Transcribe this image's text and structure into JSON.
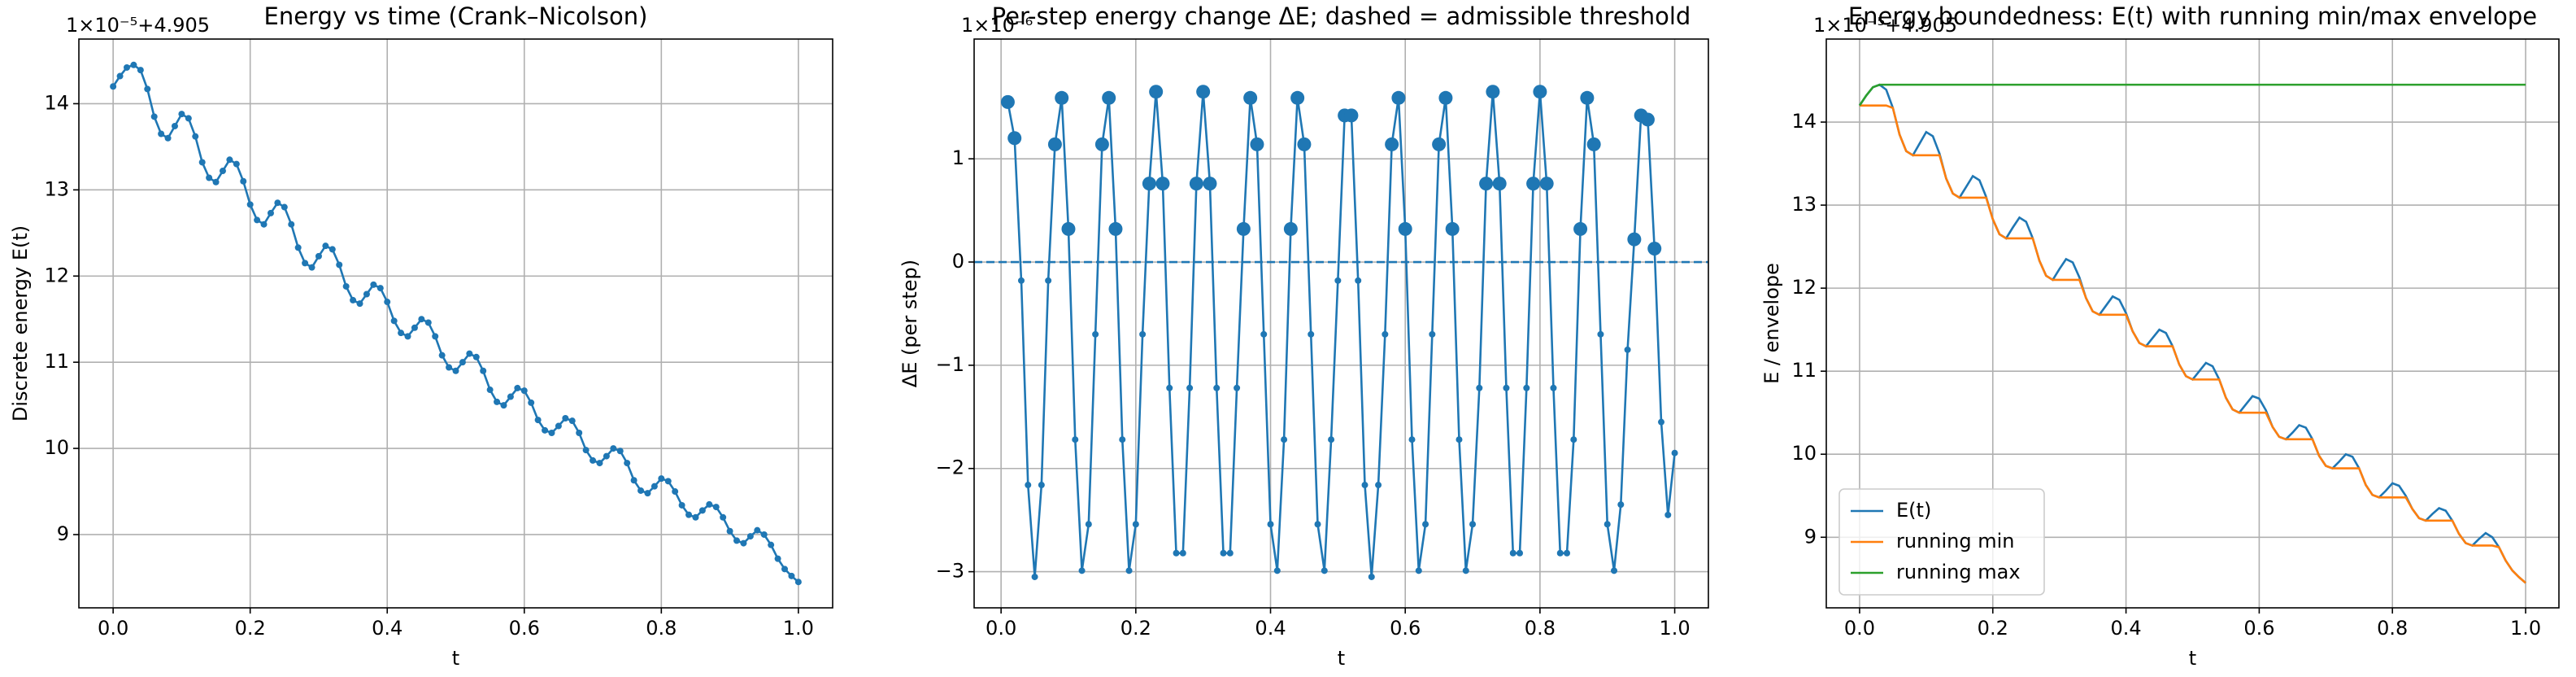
{
  "chart_data": [
    {
      "type": "line",
      "title": "Energy vs time (Crank–Nicolson)",
      "offset_label": "1×10⁻⁵+4.905",
      "xlabel": "t",
      "ylabel": "Discrete energy E(t)",
      "color": "#1f77b4",
      "markers": true,
      "grid": true,
      "x": [
        0,
        0.01,
        0.02,
        0.03,
        0.04,
        0.05,
        0.06,
        0.07,
        0.08,
        0.09,
        0.1,
        0.11,
        0.12,
        0.13,
        0.14,
        0.15,
        0.16,
        0.17,
        0.18,
        0.19,
        0.2,
        0.21,
        0.22,
        0.23,
        0.24,
        0.25,
        0.26,
        0.27,
        0.28,
        0.29,
        0.3,
        0.31,
        0.32,
        0.33,
        0.34,
        0.35,
        0.36,
        0.37,
        0.38,
        0.39,
        0.4,
        0.41,
        0.42,
        0.43,
        0.44,
        0.45,
        0.46,
        0.47,
        0.48,
        0.49,
        0.5,
        0.51,
        0.52,
        0.53,
        0.54,
        0.55,
        0.56,
        0.57,
        0.58,
        0.59,
        0.6,
        0.61,
        0.62,
        0.63,
        0.64,
        0.65,
        0.66,
        0.67,
        0.68,
        0.69,
        0.7,
        0.71,
        0.72,
        0.73,
        0.74,
        0.75,
        0.76,
        0.77,
        0.78,
        0.79,
        0.8,
        0.81,
        0.82,
        0.83,
        0.84,
        0.85,
        0.86,
        0.87,
        0.88,
        0.89,
        0.9,
        0.91,
        0.92,
        0.93,
        0.94,
        0.95,
        0.96,
        0.97,
        0.98,
        0.99,
        1
      ],
      "values": [
        14.2,
        14.32,
        14.42,
        14.45,
        14.39,
        14.17,
        13.85,
        13.65,
        13.6,
        13.74,
        13.88,
        13.83,
        13.62,
        13.32,
        13.14,
        13.09,
        13.22,
        13.35,
        13.3,
        13.1,
        12.83,
        12.65,
        12.6,
        12.73,
        12.85,
        12.8,
        12.6,
        12.33,
        12.15,
        12.1,
        12.23,
        12.35,
        12.31,
        12.13,
        11.88,
        11.72,
        11.68,
        11.79,
        11.9,
        11.86,
        11.7,
        11.48,
        11.34,
        11.3,
        11.4,
        11.5,
        11.46,
        11.3,
        11.08,
        10.94,
        10.9,
        11,
        11.1,
        11.06,
        10.9,
        10.68,
        10.54,
        10.5,
        10.6,
        10.7,
        10.67,
        10.53,
        10.33,
        10.21,
        10.18,
        10.26,
        10.35,
        10.32,
        10.18,
        9.98,
        9.86,
        9.83,
        9.91,
        10,
        9.97,
        9.83,
        9.63,
        9.51,
        9.48,
        9.56,
        9.65,
        9.62,
        9.5,
        9.34,
        9.23,
        9.2,
        9.28,
        9.35,
        9.32,
        9.2,
        9.04,
        8.93,
        8.9,
        8.98,
        9.05,
        9,
        8.88,
        8.72,
        8.6,
        8.52,
        8.45
      ],
      "xlim": [
        -0.05,
        1.05
      ],
      "ylim": [
        8.15,
        14.75
      ],
      "xticks": [
        {
          "value": 0,
          "label": "0.0"
        },
        0.2,
        0.4,
        0.6,
        0.8,
        {
          "value": 1,
          "label": "1.0"
        }
      ],
      "yticks": [
        9,
        10,
        11,
        12,
        13,
        14
      ]
    },
    {
      "type": "line",
      "title": "Per-step energy change ΔE; dashed = admissible threshold",
      "offset_label": "1×10⁻⁶",
      "xlabel": "t",
      "ylabel": "ΔE (per step)",
      "color": "#1f77b4",
      "markers": true,
      "grid": true,
      "threshold": 0,
      "threshold_color": "#1f77b4",
      "x": [
        0.01,
        0.02,
        0.03,
        0.04,
        0.05,
        0.06,
        0.07,
        0.08,
        0.09,
        0.1,
        0.11,
        0.12,
        0.13,
        0.14,
        0.15,
        0.16,
        0.17,
        0.18,
        0.19,
        0.2,
        0.21,
        0.22,
        0.23,
        0.24,
        0.25,
        0.26,
        0.27,
        0.28,
        0.29,
        0.3,
        0.31,
        0.32,
        0.33,
        0.34,
        0.35,
        0.36,
        0.37,
        0.38,
        0.39,
        0.4,
        0.41,
        0.42,
        0.43,
        0.44,
        0.45,
        0.46,
        0.47,
        0.48,
        0.49,
        0.5,
        0.51,
        0.52,
        0.53,
        0.54,
        0.55,
        0.56,
        0.57,
        0.58,
        0.59,
        0.6,
        0.61,
        0.62,
        0.63,
        0.64,
        0.65,
        0.66,
        0.67,
        0.68,
        0.69,
        0.7,
        0.71,
        0.72,
        0.73,
        0.74,
        0.75,
        0.76,
        0.77,
        0.78,
        0.79,
        0.8,
        0.81,
        0.82,
        0.83,
        0.84,
        0.85,
        0.86,
        0.87,
        0.88,
        0.89,
        0.9,
        0.91,
        0.92,
        0.93,
        0.94,
        0.95,
        0.96,
        0.97,
        0.98,
        0.99,
        1
      ],
      "values": [
        1.55,
        1.2,
        -0.18,
        -2.16,
        -3.05,
        -2.16,
        -0.18,
        1.14,
        1.59,
        0.32,
        -1.72,
        -2.99,
        -2.54,
        -0.7,
        1.14,
        1.59,
        0.32,
        -1.72,
        -2.99,
        -2.54,
        -0.7,
        0.76,
        1.65,
        0.76,
        -1.22,
        -2.82,
        -2.82,
        -1.22,
        0.76,
        1.65,
        0.76,
        -1.22,
        -2.82,
        -2.82,
        -1.22,
        0.32,
        1.59,
        1.14,
        -0.7,
        -2.54,
        -2.99,
        -1.72,
        0.32,
        1.59,
        1.14,
        -0.7,
        -2.54,
        -2.99,
        -1.72,
        -0.18,
        1.42,
        1.42,
        -0.18,
        -2.16,
        -3.05,
        -2.16,
        -0.7,
        1.14,
        1.59,
        0.32,
        -1.72,
        -2.99,
        -2.54,
        -0.7,
        1.14,
        1.59,
        0.32,
        -1.72,
        -2.99,
        -2.54,
        -1.22,
        0.76,
        1.65,
        0.76,
        -1.22,
        -2.82,
        -2.82,
        -1.22,
        0.76,
        1.65,
        0.76,
        -1.22,
        -2.82,
        -2.82,
        -1.72,
        0.32,
        1.59,
        1.14,
        -0.7,
        -2.54,
        -2.99,
        -2.35,
        -0.85,
        0.22,
        1.42,
        1.38,
        0.13,
        -1.55,
        -2.45,
        -1.85
      ],
      "xlim": [
        -0.04,
        1.05
      ],
      "ylim": [
        -3.35,
        2.16
      ],
      "xticks": [
        {
          "value": 0,
          "label": "0.0"
        },
        0.2,
        0.4,
        0.6,
        0.8,
        {
          "value": 1,
          "label": "1.0"
        }
      ],
      "yticks": [
        {
          "value": -3,
          "label": "−3"
        },
        {
          "value": -2,
          "label": "−2"
        },
        {
          "value": -1,
          "label": "−1"
        },
        0,
        1
      ]
    },
    {
      "type": "line",
      "title": "Energy boundedness: E(t) with running min/max envelope",
      "offset_label": "1×10⁻⁵+4.905",
      "xlabel": "t",
      "ylabel": "E / envelope",
      "markers": false,
      "grid": true,
      "legend": "lower left",
      "x": [
        0,
        0.01,
        0.02,
        0.03,
        0.04,
        0.05,
        0.06,
        0.07,
        0.08,
        0.09,
        0.1,
        0.11,
        0.12,
        0.13,
        0.14,
        0.15,
        0.16,
        0.17,
        0.18,
        0.19,
        0.2,
        0.21,
        0.22,
        0.23,
        0.24,
        0.25,
        0.26,
        0.27,
        0.28,
        0.29,
        0.3,
        0.31,
        0.32,
        0.33,
        0.34,
        0.35,
        0.36,
        0.37,
        0.38,
        0.39,
        0.4,
        0.41,
        0.42,
        0.43,
        0.44,
        0.45,
        0.46,
        0.47,
        0.48,
        0.49,
        0.5,
        0.51,
        0.52,
        0.53,
        0.54,
        0.55,
        0.56,
        0.57,
        0.58,
        0.59,
        0.6,
        0.61,
        0.62,
        0.63,
        0.64,
        0.65,
        0.66,
        0.67,
        0.68,
        0.69,
        0.7,
        0.71,
        0.72,
        0.73,
        0.74,
        0.75,
        0.76,
        0.77,
        0.78,
        0.79,
        0.8,
        0.81,
        0.82,
        0.83,
        0.84,
        0.85,
        0.86,
        0.87,
        0.88,
        0.89,
        0.9,
        0.91,
        0.92,
        0.93,
        0.94,
        0.95,
        0.96,
        0.97,
        0.98,
        0.99,
        1
      ],
      "series": [
        {
          "name": "E(t)",
          "color": "#1f77b4",
          "values": [
            14.2,
            14.32,
            14.42,
            14.45,
            14.39,
            14.17,
            13.85,
            13.65,
            13.6,
            13.74,
            13.88,
            13.83,
            13.62,
            13.32,
            13.14,
            13.09,
            13.22,
            13.35,
            13.3,
            13.1,
            12.83,
            12.65,
            12.6,
            12.73,
            12.85,
            12.8,
            12.6,
            12.33,
            12.15,
            12.1,
            12.23,
            12.35,
            12.31,
            12.13,
            11.88,
            11.72,
            11.68,
            11.79,
            11.9,
            11.86,
            11.7,
            11.48,
            11.34,
            11.3,
            11.4,
            11.5,
            11.46,
            11.3,
            11.08,
            10.94,
            10.9,
            11,
            11.1,
            11.06,
            10.9,
            10.68,
            10.54,
            10.5,
            10.6,
            10.7,
            10.67,
            10.53,
            10.33,
            10.21,
            10.18,
            10.26,
            10.35,
            10.32,
            10.18,
            9.98,
            9.86,
            9.83,
            9.91,
            10,
            9.97,
            9.83,
            9.63,
            9.51,
            9.48,
            9.56,
            9.65,
            9.62,
            9.5,
            9.34,
            9.23,
            9.2,
            9.28,
            9.35,
            9.32,
            9.2,
            9.04,
            8.93,
            8.9,
            8.98,
            9.05,
            9,
            8.88,
            8.72,
            8.6,
            8.52,
            8.45
          ]
        },
        {
          "name": "running min",
          "color": "#ff7f0e",
          "values": [
            14.2,
            14.2,
            14.2,
            14.2,
            14.2,
            14.17,
            13.85,
            13.65,
            13.6,
            13.6,
            13.6,
            13.6,
            13.6,
            13.32,
            13.14,
            13.09,
            13.09,
            13.09,
            13.09,
            13.09,
            12.83,
            12.65,
            12.6,
            12.6,
            12.6,
            12.6,
            12.6,
            12.33,
            12.15,
            12.1,
            12.1,
            12.1,
            12.1,
            12.1,
            11.88,
            11.72,
            11.68,
            11.68,
            11.68,
            11.68,
            11.68,
            11.48,
            11.34,
            11.3,
            11.3,
            11.3,
            11.3,
            11.3,
            11.08,
            10.94,
            10.9,
            10.9,
            10.9,
            10.9,
            10.9,
            10.68,
            10.54,
            10.5,
            10.5,
            10.5,
            10.5,
            10.5,
            10.33,
            10.21,
            10.18,
            10.18,
            10.18,
            10.18,
            10.18,
            9.98,
            9.86,
            9.83,
            9.83,
            9.83,
            9.83,
            9.83,
            9.63,
            9.51,
            9.48,
            9.48,
            9.48,
            9.48,
            9.48,
            9.34,
            9.23,
            9.2,
            9.2,
            9.2,
            9.2,
            9.2,
            9.04,
            8.93,
            8.9,
            8.9,
            8.9,
            8.9,
            8.88,
            8.72,
            8.6,
            8.52,
            8.45
          ]
        },
        {
          "name": "running max",
          "color": "#2ca02c",
          "values": [
            14.2,
            14.32,
            14.42,
            14.45,
            14.45,
            14.45,
            14.45,
            14.45,
            14.45,
            14.45,
            14.45,
            14.45,
            14.45,
            14.45,
            14.45,
            14.45,
            14.45,
            14.45,
            14.45,
            14.45,
            14.45,
            14.45,
            14.45,
            14.45,
            14.45,
            14.45,
            14.45,
            14.45,
            14.45,
            14.45,
            14.45,
            14.45,
            14.45,
            14.45,
            14.45,
            14.45,
            14.45,
            14.45,
            14.45,
            14.45,
            14.45,
            14.45,
            14.45,
            14.45,
            14.45,
            14.45,
            14.45,
            14.45,
            14.45,
            14.45,
            14.45,
            14.45,
            14.45,
            14.45,
            14.45,
            14.45,
            14.45,
            14.45,
            14.45,
            14.45,
            14.45,
            14.45,
            14.45,
            14.45,
            14.45,
            14.45,
            14.45,
            14.45,
            14.45,
            14.45,
            14.45,
            14.45,
            14.45,
            14.45,
            14.45,
            14.45,
            14.45,
            14.45,
            14.45,
            14.45,
            14.45,
            14.45,
            14.45,
            14.45,
            14.45,
            14.45,
            14.45,
            14.45,
            14.45,
            14.45,
            14.45,
            14.45,
            14.45,
            14.45,
            14.45,
            14.45,
            14.45,
            14.45,
            14.45,
            14.45,
            14.45
          ]
        }
      ],
      "xlim": [
        -0.05,
        1.05
      ],
      "ylim": [
        8.15,
        15.0
      ],
      "xticks": [
        {
          "value": 0,
          "label": "0.0"
        },
        0.2,
        0.4,
        0.6,
        0.8,
        {
          "value": 1,
          "label": "1.0"
        }
      ],
      "yticks": [
        9,
        10,
        11,
        12,
        13,
        14
      ]
    }
  ]
}
